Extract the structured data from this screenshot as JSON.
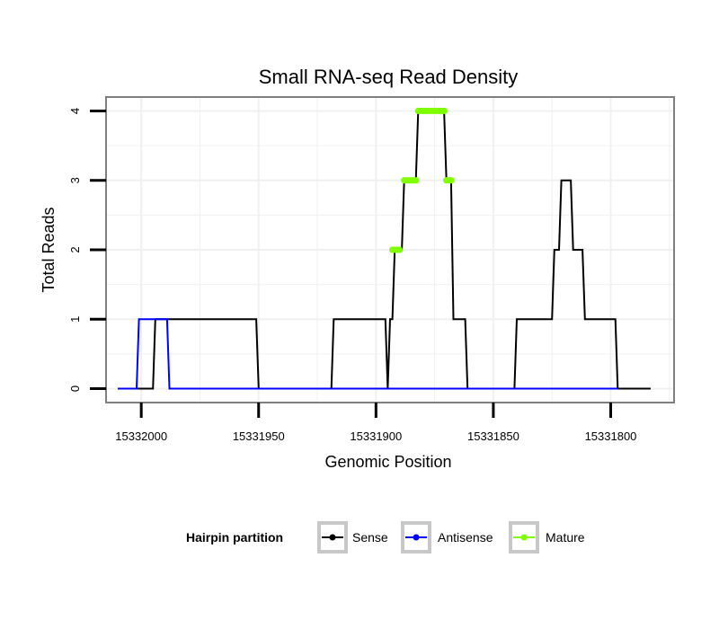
{
  "chart_data": {
    "type": "line",
    "title": "Small RNA-seq Read Density",
    "xlabel": "Genomic Position",
    "ylabel": "Total Reads",
    "x_reversed": true,
    "xlim": [
      15332015,
      15331773
    ],
    "ylim": [
      -0.2,
      4.2
    ],
    "x_ticks": [
      15332000,
      15331950,
      15331900,
      15331850,
      15331800
    ],
    "x_tick_labels": [
      "15332000",
      "15331950",
      "15331900",
      "15331850",
      "15331800"
    ],
    "y_ticks": [
      0,
      1,
      2,
      3,
      4
    ],
    "y_tick_labels": [
      "0",
      "1",
      "2",
      "3",
      "4"
    ],
    "grid": true,
    "legend": {
      "title": "Hairpin partition",
      "position": "bottom",
      "entries": [
        {
          "label": "Sense",
          "color": "#000000"
        },
        {
          "label": "Antisense",
          "color": "#0000ff"
        },
        {
          "label": "Mature",
          "color": "#7fff00"
        }
      ]
    },
    "series": [
      {
        "name": "Sense",
        "color": "#000000",
        "points": [
          [
            15332010,
            0
          ],
          [
            15331995,
            0
          ],
          [
            15331994,
            1
          ],
          [
            15331951,
            1
          ],
          [
            15331950,
            0
          ],
          [
            15331919,
            0
          ],
          [
            15331918,
            1
          ],
          [
            15331896,
            1
          ],
          [
            15331895,
            0
          ],
          [
            15331894,
            1
          ],
          [
            15331893,
            1
          ],
          [
            15331892,
            2
          ],
          [
            15331889,
            2
          ],
          [
            15331888,
            3
          ],
          [
            15331883,
            3
          ],
          [
            15331882,
            4
          ],
          [
            15331871,
            4
          ],
          [
            15331870,
            3
          ],
          [
            15331868,
            3
          ],
          [
            15331867,
            1
          ],
          [
            15331862,
            1
          ],
          [
            15331861,
            0
          ],
          [
            15331841,
            0
          ],
          [
            15331840,
            1
          ],
          [
            15331825,
            1
          ],
          [
            15331824,
            2
          ],
          [
            15331822,
            2
          ],
          [
            15331821,
            3
          ],
          [
            15331817,
            3
          ],
          [
            15331816,
            2
          ],
          [
            15331812,
            2
          ],
          [
            15331811,
            1
          ],
          [
            15331798,
            1
          ],
          [
            15331797,
            0
          ],
          [
            15331783,
            0
          ]
        ]
      },
      {
        "name": "Antisense",
        "color": "#0000ff",
        "points": [
          [
            15332010,
            0
          ],
          [
            15332002,
            0
          ],
          [
            15332001,
            1
          ],
          [
            15331989,
            1
          ],
          [
            15331988,
            0
          ],
          [
            15331797,
            0
          ]
        ]
      },
      {
        "name": "Mature",
        "color": "#7fff00",
        "points": [
          [
            15331893,
            2
          ],
          [
            15331892,
            2
          ],
          [
            15331891,
            2
          ],
          [
            15331890,
            2
          ],
          [
            15331888,
            3
          ],
          [
            15331887,
            3
          ],
          [
            15331886,
            3
          ],
          [
            15331885,
            3
          ],
          [
            15331884,
            3
          ],
          [
            15331883,
            3
          ],
          [
            15331882,
            4
          ],
          [
            15331881,
            4
          ],
          [
            15331880,
            4
          ],
          [
            15331879,
            4
          ],
          [
            15331878,
            4
          ],
          [
            15331877,
            4
          ],
          [
            15331876,
            4
          ],
          [
            15331875,
            4
          ],
          [
            15331874,
            4
          ],
          [
            15331873,
            4
          ],
          [
            15331872,
            4
          ],
          [
            15331871,
            4
          ],
          [
            15331870,
            3
          ],
          [
            15331869,
            3
          ],
          [
            15331868,
            3
          ]
        ]
      }
    ]
  }
}
